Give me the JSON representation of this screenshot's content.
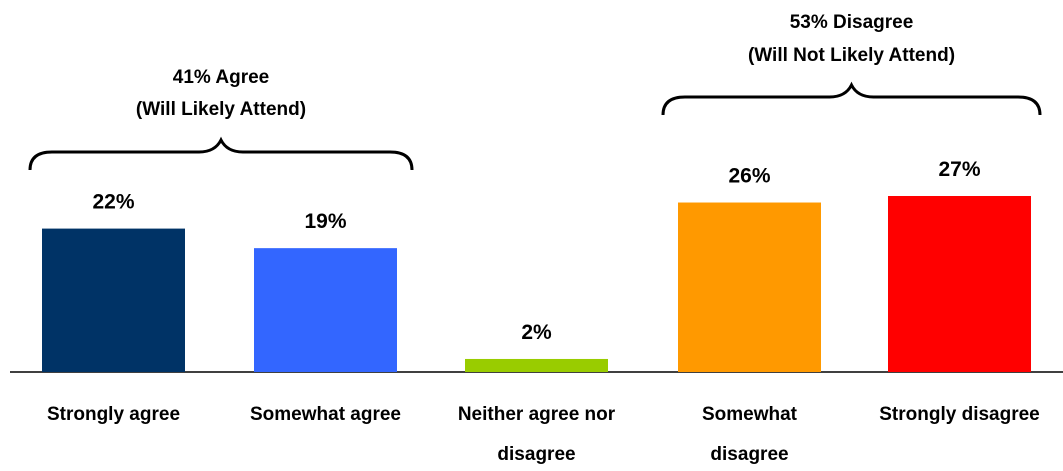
{
  "chart_data": {
    "type": "bar",
    "categories": [
      [
        "Strongly agree"
      ],
      [
        "Somewhat agree"
      ],
      [
        "Neither agree nor",
        "disagree"
      ],
      [
        "Somewhat",
        "disagree"
      ],
      [
        "Strongly disagree"
      ]
    ],
    "values": [
      22,
      19,
      2,
      26,
      27
    ],
    "data_labels": [
      "22%",
      "19%",
      "2%",
      "26%",
      "27%"
    ],
    "colors": [
      "#003366",
      "#3366FF",
      "#99CC00",
      "#FF9900",
      "#FF0000"
    ],
    "ylim": [
      0,
      27
    ],
    "title": "",
    "xlabel": "",
    "ylabel": "",
    "grid": false,
    "legend": "none",
    "annotations": [
      {
        "type": "brace",
        "spans": [
          0,
          1
        ],
        "lines": [
          "41% Agree",
          "(Will Likely Attend)"
        ]
      },
      {
        "type": "brace",
        "spans": [
          3,
          4
        ],
        "lines": [
          "53% Disagree",
          "(Will Not Likely Attend)"
        ]
      }
    ]
  }
}
